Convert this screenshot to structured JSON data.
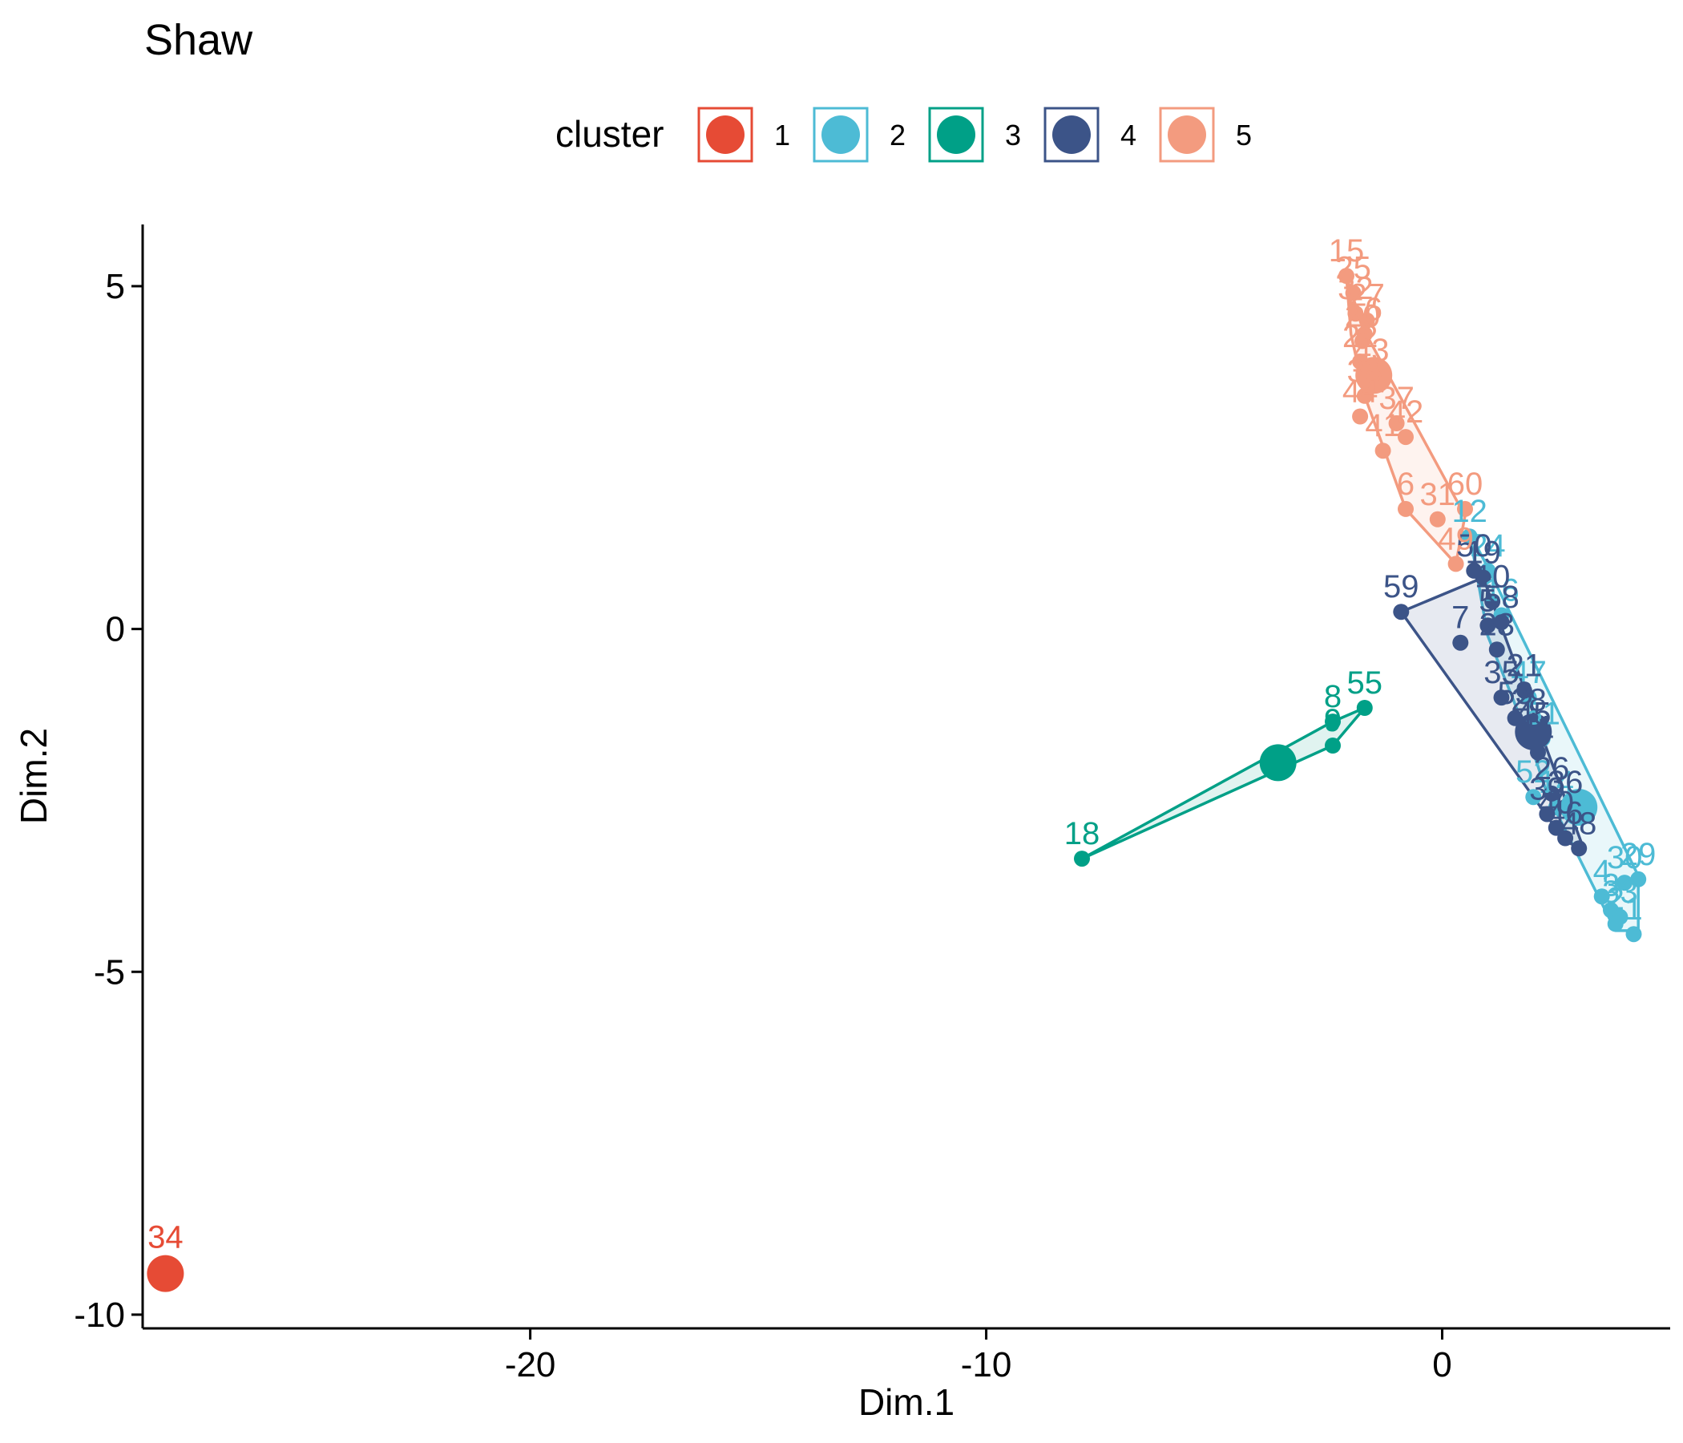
{
  "chart_data": {
    "type": "scatter",
    "title": "Shaw",
    "xlabel": "Dim.1",
    "ylabel": "Dim.2",
    "xlim": [
      -28.5,
      5
    ],
    "ylim": [
      -10.2,
      5.9
    ],
    "x_ticks": [
      -20,
      -10,
      0
    ],
    "y_ticks": [
      5,
      0,
      -5,
      -10
    ],
    "x_tick_labels": [
      "-20",
      "-10",
      "0"
    ],
    "y_tick_labels": [
      "5",
      "0",
      "-5",
      "-10"
    ],
    "grid": false,
    "legend": {
      "title": "cluster",
      "placement": "top",
      "entries": [
        "1",
        "2",
        "3",
        "4",
        "5"
      ]
    },
    "clusters": [
      {
        "name": "1",
        "color": "#E64B35",
        "hull": [],
        "centroid": [
          -28.0,
          -9.4
        ],
        "points": [
          {
            "label": "34",
            "x": -28.0,
            "y": -9.4
          }
        ]
      },
      {
        "name": "2",
        "color": "#4DBBD5",
        "hull": [
          [
            0.6,
            1.4
          ],
          [
            1.0,
            0.9
          ],
          [
            4.3,
            -3.6
          ],
          [
            4.3,
            -4.4
          ],
          [
            3.8,
            -4.4
          ],
          [
            2.3,
            -2.4
          ],
          [
            1.9,
            -1.6
          ],
          [
            1.0,
            -0.1
          ]
        ],
        "centroid": [
          3.0,
          -2.6
        ],
        "points": [
          {
            "label": "12",
            "x": 0.6,
            "y": 1.35
          },
          {
            "label": "24",
            "x": 1.0,
            "y": 0.85
          },
          {
            "label": "16",
            "x": 1.3,
            "y": 0.2
          },
          {
            "label": "47",
            "x": 1.9,
            "y": -1.0
          },
          {
            "label": "51",
            "x": 2.2,
            "y": -1.6
          },
          {
            "label": "52",
            "x": 2.0,
            "y": -2.45
          },
          {
            "label": "14",
            "x": 2.5,
            "y": -2.6
          },
          {
            "label": "4",
            "x": 3.5,
            "y": -3.9
          },
          {
            "label": "30",
            "x": 4.0,
            "y": -3.7
          },
          {
            "label": "29",
            "x": 4.3,
            "y": -3.65
          },
          {
            "label": "3",
            "x": 3.7,
            "y": -4.1
          },
          {
            "label": "33",
            "x": 3.9,
            "y": -4.2
          },
          {
            "label": "2",
            "x": 3.8,
            "y": -4.3
          },
          {
            "label": "1",
            "x": 4.2,
            "y": -4.45
          }
        ]
      },
      {
        "name": "3",
        "color": "#00A087",
        "hull": [
          [
            -1.7,
            -1.15
          ],
          [
            -2.4,
            -1.7
          ],
          [
            -7.9,
            -3.35
          ],
          [
            -2.4,
            -1.35
          ]
        ],
        "centroid": [
          -3.6,
          -1.95
        ],
        "points": [
          {
            "label": "55",
            "x": -1.7,
            "y": -1.15
          },
          {
            "label": "8",
            "x": -2.4,
            "y": -1.35
          },
          {
            "label": "9",
            "x": -2.4,
            "y": -1.7
          },
          {
            "label": "18",
            "x": -7.9,
            "y": -3.35
          }
        ]
      },
      {
        "name": "4",
        "color": "#3C5488",
        "hull": [
          [
            -0.9,
            0.25
          ],
          [
            0.9,
            0.75
          ],
          [
            3.1,
            -3.2
          ],
          [
            2.7,
            -3.1
          ]
        ],
        "centroid": [
          2.0,
          -1.5
        ],
        "points": [
          {
            "label": "59",
            "x": -0.9,
            "y": 0.25
          },
          {
            "label": "50",
            "x": 0.7,
            "y": 0.85
          },
          {
            "label": "19",
            "x": 0.9,
            "y": 0.75
          },
          {
            "label": "10",
            "x": 1.1,
            "y": 0.4
          },
          {
            "label": "7",
            "x": 0.4,
            "y": -0.2
          },
          {
            "label": "5",
            "x": 1.0,
            "y": 0.05
          },
          {
            "label": "58",
            "x": 1.3,
            "y": 0.1
          },
          {
            "label": "23",
            "x": 1.2,
            "y": -0.3
          },
          {
            "label": "21",
            "x": 1.8,
            "y": -0.9
          },
          {
            "label": "35",
            "x": 1.3,
            "y": -1.0
          },
          {
            "label": "53",
            "x": 1.6,
            "y": -1.3
          },
          {
            "label": "28",
            "x": 1.9,
            "y": -1.4
          },
          {
            "label": "45",
            "x": 2.0,
            "y": -1.6
          },
          {
            "label": "11",
            "x": 2.1,
            "y": -1.8
          },
          {
            "label": "26",
            "x": 2.4,
            "y": -2.4
          },
          {
            "label": "39",
            "x": 2.3,
            "y": -2.7
          },
          {
            "label": "40",
            "x": 2.5,
            "y": -2.9
          },
          {
            "label": "36",
            "x": 2.7,
            "y": -2.6
          },
          {
            "label": "46",
            "x": 2.7,
            "y": -3.05
          },
          {
            "label": "48",
            "x": 3.0,
            "y": -3.2
          }
        ]
      },
      {
        "name": "5",
        "color": "#F39B7F",
        "hull": [
          [
            -2.1,
            5.15
          ],
          [
            -1.75,
            4.4
          ],
          [
            0.5,
            1.65
          ],
          [
            0.3,
            0.95
          ],
          [
            -0.8,
            1.75
          ],
          [
            -1.7,
            3.4
          ],
          [
            -2.0,
            4.3
          ]
        ],
        "centroid": [
          -1.5,
          3.7
        ],
        "points": [
          {
            "label": "15",
            "x": -2.1,
            "y": 5.15
          },
          {
            "label": "25",
            "x": -1.95,
            "y": 4.9
          },
          {
            "label": "32",
            "x": -1.9,
            "y": 4.6
          },
          {
            "label": "27",
            "x": -1.65,
            "y": 4.5
          },
          {
            "label": "56",
            "x": -1.7,
            "y": 4.3
          },
          {
            "label": "20",
            "x": -1.75,
            "y": 4.2
          },
          {
            "label": "22",
            "x": -1.8,
            "y": 3.9
          },
          {
            "label": "43",
            "x": -1.55,
            "y": 3.7
          },
          {
            "label": "38",
            "x": -1.7,
            "y": 3.4
          },
          {
            "label": "44",
            "x": -1.8,
            "y": 3.1
          },
          {
            "label": "37",
            "x": -1.0,
            "y": 3.0
          },
          {
            "label": "42",
            "x": -0.8,
            "y": 2.8
          },
          {
            "label": "41",
            "x": -1.3,
            "y": 2.6
          },
          {
            "label": "6",
            "x": -0.8,
            "y": 1.75
          },
          {
            "label": "31",
            "x": -0.1,
            "y": 1.6
          },
          {
            "label": "60",
            "x": 0.5,
            "y": 1.75
          },
          {
            "label": "49",
            "x": 0.3,
            "y": 0.95
          }
        ]
      }
    ]
  }
}
